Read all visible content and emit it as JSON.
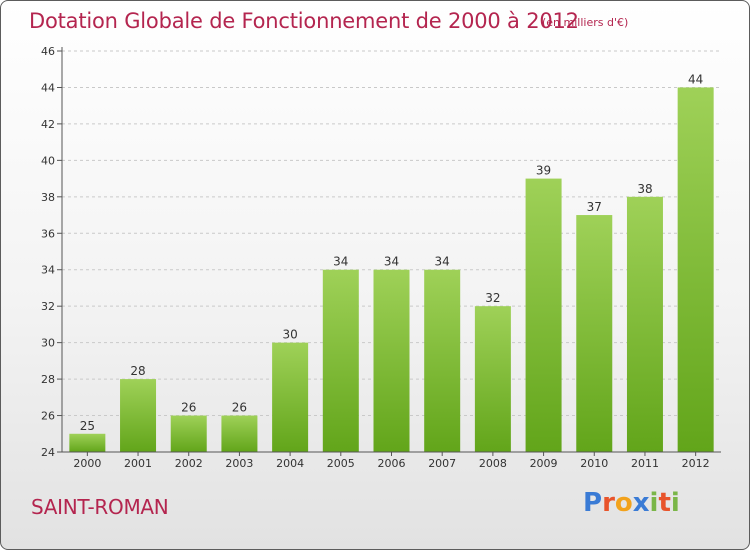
{
  "header": {
    "title": "Dotation Globale de Fonctionnement de 2000 à 2012",
    "unit_note": "(en milliers d'€)"
  },
  "footer": {
    "commune": "SAINT-ROMAN",
    "logo_letters": [
      "P",
      "r",
      "o",
      "x",
      "i",
      "t",
      "i"
    ],
    "logo_colors": [
      "#3a7bd5",
      "#e8542b",
      "#f2a21c",
      "#3a7bd5",
      "#7ab648",
      "#e8542b",
      "#7ab648"
    ]
  },
  "colors": {
    "title": "#b4254f",
    "bar_light": "#9fd158",
    "bar_dark": "#62a51a",
    "axis": "#555555",
    "grid": "#c9c9c9"
  },
  "chart_data": {
    "type": "bar",
    "title": "Dotation Globale de Fonctionnement de 2000 à 2012",
    "subtitle": "(en milliers d'€)",
    "xlabel": "",
    "ylabel": "",
    "categories": [
      "2000",
      "2001",
      "2002",
      "2003",
      "2004",
      "2005",
      "2006",
      "2007",
      "2008",
      "2009",
      "2010",
      "2011",
      "2012"
    ],
    "values": [
      25,
      28,
      26,
      26,
      30,
      34,
      34,
      34,
      32,
      39,
      37,
      38,
      44
    ],
    "ylim": [
      24,
      46
    ],
    "yticks": [
      24,
      26,
      28,
      30,
      32,
      34,
      36,
      38,
      40,
      42,
      44,
      46
    ],
    "grid": "horizontal dashed",
    "legend": "none"
  }
}
